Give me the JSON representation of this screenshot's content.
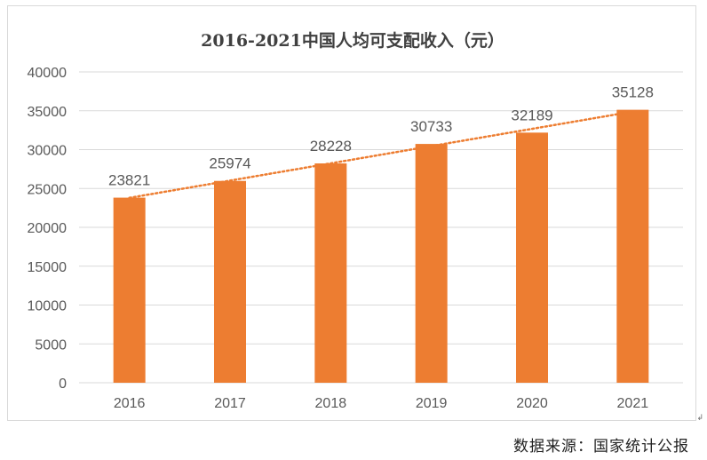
{
  "chart_data": {
    "type": "bar",
    "title": "2016-2021中国人均可支配收入（元）",
    "categories": [
      "2016",
      "2017",
      "2018",
      "2019",
      "2020",
      "2021"
    ],
    "values": [
      23821,
      25974,
      28228,
      30733,
      32189,
      35128
    ],
    "ylim": [
      0,
      40000
    ],
    "yticks": [
      "0",
      "5000",
      "10000",
      "15000",
      "20000",
      "25000",
      "30000",
      "35000",
      "40000"
    ],
    "grid": true,
    "data_labels": true,
    "trendline": "linear, dotted",
    "colors": {
      "bar": "#ED7D31",
      "trend": "#ED7D31",
      "grid": "#d9d9d9",
      "text": "#595959"
    }
  },
  "source_text": "数据来源：国家统计公报"
}
